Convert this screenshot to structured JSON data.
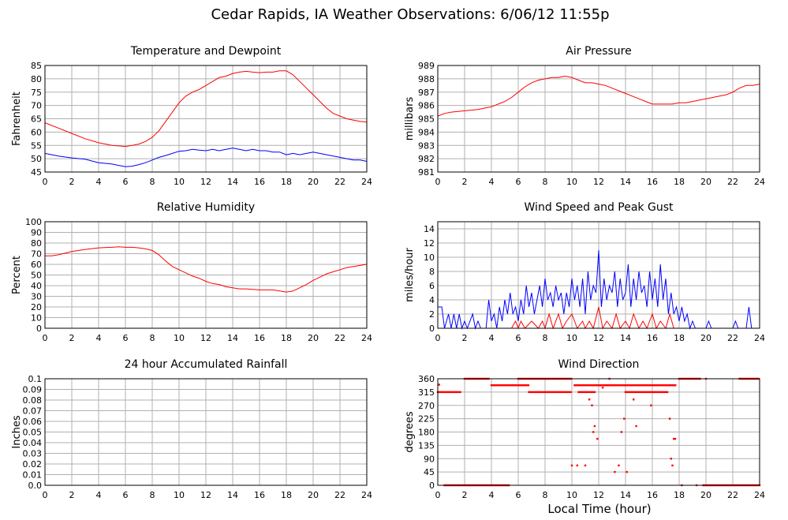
{
  "title": "Cedar Rapids, IA Weather Observations: 6/06/12 11:55p",
  "x_axis_label": "Local Time (hour)",
  "colors": {
    "red": "#ff0000",
    "blue": "#0000ff",
    "grid": "#b0b0b0",
    "frame": "#000000"
  },
  "chart_data": [
    {
      "id": "temp",
      "type": "line",
      "title": "Temperature and Dewpoint",
      "ylabel": "Fahrenheit",
      "xlim": [
        0,
        24
      ],
      "ylim": [
        45,
        85
      ],
      "xticks": [
        0,
        2,
        4,
        6,
        8,
        10,
        12,
        14,
        16,
        18,
        20,
        22,
        24
      ],
      "yticks": [
        45,
        50,
        55,
        60,
        65,
        70,
        75,
        80,
        85
      ],
      "series": [
        {
          "color": "red",
          "x": [
            0,
            1,
            2,
            3,
            4,
            5,
            5.5,
            6,
            6.5,
            7,
            7.5,
            8,
            8.5,
            9,
            9.5,
            10,
            10.5,
            11,
            11.5,
            12,
            12.5,
            13,
            13.5,
            14,
            14.5,
            15,
            15.5,
            16,
            16.5,
            17,
            17.5,
            18,
            18.5,
            19,
            19.5,
            20,
            20.5,
            21,
            21.5,
            22,
            22.5,
            23,
            23.5,
            24
          ],
          "y": [
            63.5,
            61.5,
            59.5,
            57.5,
            56,
            55,
            54.8,
            54.6,
            55,
            55.5,
            56.5,
            58,
            60.5,
            64,
            67.5,
            71,
            73.5,
            75,
            76,
            77.5,
            79,
            80.5,
            81,
            82,
            82.5,
            82.8,
            82.5,
            82.3,
            82.5,
            82.5,
            83,
            83,
            81.5,
            79,
            76.5,
            74,
            71.5,
            69,
            67,
            66,
            65,
            64.5,
            64,
            63.8
          ]
        },
        {
          "color": "blue",
          "x": [
            0,
            1,
            2,
            3,
            4,
            5,
            5.5,
            6,
            6.5,
            7,
            7.5,
            8,
            8.5,
            9,
            9.5,
            10,
            10.5,
            11,
            11.5,
            12,
            12.5,
            13,
            13.5,
            14,
            14.5,
            15,
            15.5,
            16,
            16.5,
            17,
            17.5,
            18,
            18.5,
            19,
            19.5,
            20,
            20.5,
            21,
            21.5,
            22,
            22.5,
            23,
            23.5,
            24
          ],
          "y": [
            52,
            51,
            50.3,
            49.8,
            48.5,
            48,
            47.5,
            47,
            47.2,
            47.8,
            48.5,
            49.5,
            50.5,
            51.2,
            52,
            52.8,
            53,
            53.5,
            53.2,
            53,
            53.5,
            53,
            53.5,
            54,
            53.5,
            53,
            53.5,
            53,
            53,
            52.5,
            52.5,
            51.5,
            52,
            51.5,
            52,
            52.5,
            52,
            51.5,
            51,
            50.5,
            50,
            49.5,
            49.5,
            49
          ]
        }
      ]
    },
    {
      "id": "pressure",
      "type": "line",
      "title": "Air Pressure",
      "ylabel": "millibars",
      "xlim": [
        0,
        24
      ],
      "ylim": [
        981,
        989
      ],
      "xticks": [
        0,
        2,
        4,
        6,
        8,
        10,
        12,
        14,
        16,
        18,
        20,
        22,
        24
      ],
      "yticks": [
        981,
        982,
        983,
        984,
        985,
        986,
        987,
        988,
        989
      ],
      "series": [
        {
          "color": "red",
          "x": [
            0,
            0.5,
            1,
            2,
            3,
            4,
            5,
            5.5,
            6,
            6.5,
            7,
            7.5,
            8,
            8.5,
            9,
            9.5,
            10,
            10.5,
            11,
            11.5,
            12,
            12.5,
            13,
            13.5,
            14,
            14.5,
            15,
            15.5,
            16,
            16.5,
            17,
            17.5,
            18,
            18.5,
            19,
            19.5,
            20,
            20.5,
            21,
            21.5,
            22,
            22.5,
            23,
            23.5,
            24
          ],
          "y": [
            985.2,
            985.4,
            985.5,
            985.6,
            985.7,
            985.9,
            986.3,
            986.6,
            987,
            987.4,
            987.7,
            987.9,
            988,
            988.1,
            988.1,
            988.2,
            988.1,
            987.9,
            987.7,
            987.7,
            987.6,
            987.5,
            987.3,
            987.1,
            986.9,
            986.7,
            986.5,
            986.3,
            986.1,
            986.1,
            986.1,
            986.1,
            986.2,
            986.2,
            986.3,
            986.4,
            986.5,
            986.6,
            986.7,
            986.8,
            987,
            987.3,
            987.5,
            987.5,
            987.6
          ]
        }
      ]
    },
    {
      "id": "humidity",
      "type": "line",
      "title": "Relative Humidity",
      "ylabel": "Percent",
      "xlim": [
        0,
        24
      ],
      "ylim": [
        0,
        100
      ],
      "xticks": [
        0,
        2,
        4,
        6,
        8,
        10,
        12,
        14,
        16,
        18,
        20,
        22,
        24
      ],
      "yticks": [
        0,
        10,
        20,
        30,
        40,
        50,
        60,
        70,
        80,
        90,
        100
      ],
      "series": [
        {
          "color": "red",
          "x": [
            0,
            0.5,
            1,
            2,
            3,
            4,
            5,
            5.5,
            6,
            6.5,
            7,
            7.5,
            8,
            8.5,
            9,
            9.5,
            10,
            10.5,
            11,
            11.5,
            12,
            12.5,
            13,
            13.5,
            14,
            14.5,
            15,
            15.5,
            16,
            16.5,
            17,
            17.5,
            18,
            18.5,
            19,
            19.5,
            20,
            20.5,
            21,
            21.5,
            22,
            22.5,
            23,
            23.5,
            24
          ],
          "y": [
            68,
            68,
            69,
            72,
            74,
            75.5,
            76,
            76.5,
            76,
            76,
            75.5,
            74.5,
            73,
            69,
            63,
            58,
            55,
            52,
            49,
            47,
            44,
            42,
            41,
            39,
            38,
            37,
            37,
            36.5,
            36,
            36,
            36,
            35,
            34,
            35,
            38,
            41,
            45,
            48,
            51,
            53,
            55,
            57,
            58,
            59,
            60
          ]
        }
      ]
    },
    {
      "id": "wind",
      "type": "line",
      "title": "Wind Speed and Peak Gust",
      "ylabel": "miles/hour",
      "xlim": [
        0,
        24
      ],
      "ylim": [
        0,
        15
      ],
      "xticks": [
        0,
        2,
        4,
        6,
        8,
        10,
        12,
        14,
        16,
        18,
        20,
        22,
        24
      ],
      "yticks": [
        0,
        2,
        4,
        6,
        8,
        10,
        12,
        14
      ],
      "series": [
        {
          "color": "blue",
          "x": [
            0,
            0.3,
            0.5,
            0.8,
            1,
            1.2,
            1.4,
            1.6,
            1.8,
            2,
            2.2,
            2.6,
            2.8,
            3,
            3.2,
            3.6,
            3.8,
            4,
            4.2,
            4.4,
            4.6,
            4.8,
            5,
            5.2,
            5.4,
            5.6,
            5.8,
            6,
            6.2,
            6.4,
            6.6,
            6.8,
            7,
            7.2,
            7.4,
            7.6,
            7.8,
            8,
            8.2,
            8.4,
            8.6,
            8.8,
            9,
            9.2,
            9.4,
            9.6,
            9.8,
            10,
            10.2,
            10.4,
            10.6,
            10.8,
            11,
            11.2,
            11.4,
            11.6,
            11.8,
            12,
            12.2,
            12.4,
            12.6,
            12.8,
            13,
            13.2,
            13.4,
            13.6,
            13.8,
            14,
            14.2,
            14.4,
            14.6,
            14.8,
            15,
            15.2,
            15.4,
            15.6,
            15.8,
            16,
            16.2,
            16.4,
            16.6,
            16.8,
            17,
            17.2,
            17.4,
            17.6,
            17.8,
            18,
            18.2,
            18.4,
            18.6,
            18.8,
            19,
            19.2,
            20,
            20.2,
            20.4,
            22,
            22.2,
            22.4,
            23,
            23.2,
            23.4,
            24
          ],
          "y": [
            3,
            3,
            0,
            2,
            0,
            2,
            0,
            2,
            0,
            1,
            0,
            2,
            0,
            1,
            0,
            0,
            4,
            1,
            2,
            0,
            3,
            1,
            4,
            2,
            5,
            2,
            3,
            1,
            4,
            2,
            6,
            3,
            5,
            2,
            4,
            6,
            3,
            7,
            4,
            5,
            3,
            6,
            4,
            5,
            2,
            5,
            3,
            7,
            4,
            6,
            3,
            7,
            2,
            8,
            4,
            6,
            5,
            11,
            3,
            7,
            4,
            6,
            5,
            8,
            3,
            7,
            4,
            5,
            9,
            3,
            7,
            4,
            8,
            5,
            6,
            3,
            8,
            4,
            7,
            3,
            9,
            4,
            7,
            2,
            5,
            2,
            3,
            1,
            3,
            1,
            2,
            0,
            1,
            0,
            0,
            1,
            0,
            0,
            1,
            0,
            0,
            3,
            0,
            0
          ]
        },
        {
          "color": "red",
          "x": [
            0,
            5.5,
            5.8,
            6,
            6.2,
            6.5,
            7,
            7.5,
            7.8,
            8,
            8.3,
            8.6,
            9,
            9.3,
            9.6,
            10,
            10.4,
            10.8,
            11,
            11.3,
            11.6,
            12,
            12.3,
            12.6,
            13,
            13.3,
            13.6,
            14,
            14.3,
            14.6,
            15,
            15.3,
            15.6,
            16,
            16.3,
            16.6,
            17,
            17.3,
            17.6,
            18,
            24
          ],
          "y": [
            0,
            0,
            1,
            0,
            1,
            0,
            1,
            0,
            1,
            0,
            2,
            0,
            2,
            0,
            1,
            2,
            0,
            1,
            0,
            1,
            0,
            3,
            0,
            1,
            0,
            2,
            0,
            1,
            0,
            2,
            0,
            1,
            0,
            2,
            0,
            1,
            0,
            2,
            0,
            0,
            0
          ]
        }
      ]
    },
    {
      "id": "rain",
      "type": "line",
      "title": "24 hour Accumulated Rainfall",
      "ylabel": "Inches",
      "xlim": [
        0,
        24
      ],
      "ylim": [
        0,
        0.1
      ],
      "xticks": [
        0,
        2,
        4,
        6,
        8,
        10,
        12,
        14,
        16,
        18,
        20,
        22,
        24
      ],
      "yticks": [
        0.0,
        0.01,
        0.02,
        0.03,
        0.04,
        0.05,
        0.06,
        0.07,
        0.08,
        0.09,
        0.1
      ],
      "ytick_labels": [
        "0.0",
        "0.01",
        "0.02",
        "0.03",
        "0.04",
        "0.05",
        "0.06",
        "0.07",
        "0.08",
        "0.09",
        "0.1"
      ],
      "series": [
        {
          "color": "red",
          "x": [
            0,
            24
          ],
          "y": [
            0,
            0
          ]
        }
      ]
    },
    {
      "id": "winddir",
      "type": "scatter",
      "title": "Wind Direction",
      "ylabel": "degrees",
      "xlim": [
        0,
        24
      ],
      "ylim": [
        0,
        360
      ],
      "xticks": [
        0,
        2,
        4,
        6,
        8,
        10,
        12,
        14,
        16,
        18,
        20,
        22,
        24
      ],
      "yticks": [
        0,
        45,
        90,
        135,
        180,
        225,
        270,
        315,
        360
      ],
      "series": [
        {
          "color": "red",
          "segments": [
            {
              "y": 315,
              "x_from": 0.0,
              "x_to": 1.7
            },
            {
              "y": 360,
              "x_from": 2.0,
              "x_to": 3.8
            },
            {
              "y": 0,
              "x_from": 0.5,
              "x_to": 5.4
            },
            {
              "y": 338,
              "x_from": 4.0,
              "x_to": 6.8
            },
            {
              "y": 315,
              "x_from": 6.8,
              "x_to": 10.0
            },
            {
              "y": 360,
              "x_from": 6.0,
              "x_to": 10.0
            },
            {
              "y": 338,
              "x_from": 10.2,
              "x_to": 12.8
            },
            {
              "y": 315,
              "x_from": 10.5,
              "x_to": 11.8
            },
            {
              "y": 338,
              "x_from": 12.8,
              "x_to": 17.8
            },
            {
              "y": 315,
              "x_from": 14.0,
              "x_to": 17.2
            },
            {
              "y": 360,
              "x_from": 18.0,
              "x_to": 19.6
            },
            {
              "y": 0,
              "x_from": 19.8,
              "x_to": 24.0
            },
            {
              "y": 360,
              "x_from": 22.5,
              "x_to": 24.0
            }
          ],
          "points": [
            [
              0.1,
              340
            ],
            [
              10.0,
              67
            ],
            [
              10.4,
              67
            ],
            [
              11.0,
              67
            ],
            [
              11.3,
              290
            ],
            [
              11.5,
              270
            ],
            [
              11.6,
              180
            ],
            [
              11.7,
              200
            ],
            [
              11.9,
              157
            ],
            [
              12.3,
              330
            ],
            [
              12.8,
              360
            ],
            [
              13.2,
              45
            ],
            [
              13.5,
              67
            ],
            [
              13.7,
              180
            ],
            [
              13.9,
              225
            ],
            [
              14.1,
              45
            ],
            [
              14.6,
              290
            ],
            [
              14.8,
              200
            ],
            [
              15.9,
              270
            ],
            [
              17.3,
              225
            ],
            [
              17.4,
              90
            ],
            [
              17.5,
              67
            ],
            [
              17.6,
              157
            ],
            [
              17.7,
              157
            ],
            [
              18.2,
              0
            ],
            [
              19.3,
              0
            ],
            [
              20.0,
              360
            ]
          ]
        }
      ]
    }
  ]
}
